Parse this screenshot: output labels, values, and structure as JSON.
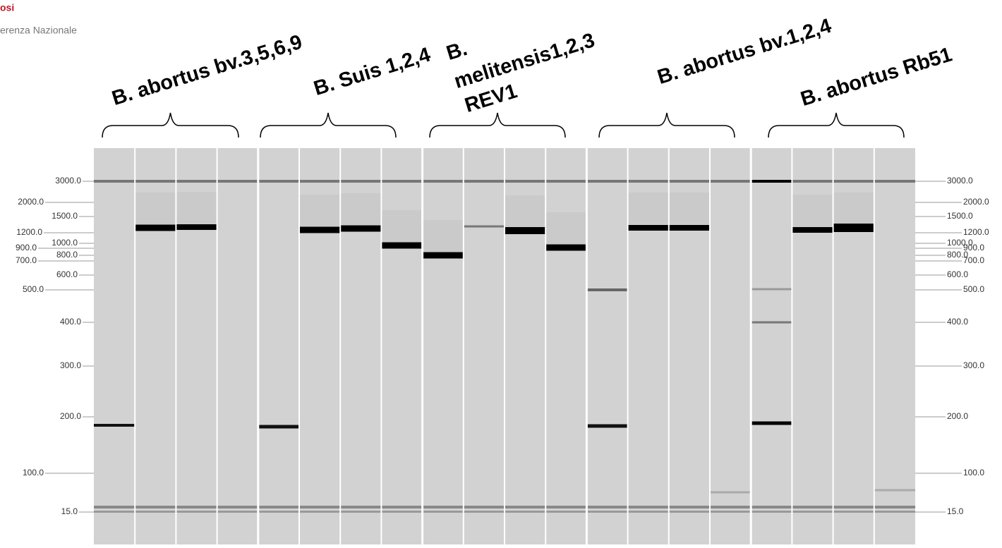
{
  "logo": {
    "line1": "osi",
    "line2": "erenza Nazionale"
  },
  "groups": [
    "B. abortus bv.3,5,6,9",
    "B. Suis 1,2,4",
    "B.",
    "melitensis1,2,3",
    "REV1",
    "B. abortus bv.1,2,4",
    "B. abortus Rb51"
  ],
  "ladder_left": [
    "3000.0",
    "2000.0",
    "1500.0",
    "1200.0",
    "1000.0",
    "900.0",
    "800.0",
    "700.0",
    "600.0",
    "500.0",
    "400.0",
    "300.0",
    "200.0",
    "100.0",
    "15.0"
  ],
  "ladder_right": [
    "3000.0",
    "2000.0",
    "1500.0",
    "1200.0",
    "1000.0",
    "900.0",
    "800.0",
    "700.0",
    "600.0",
    "500.0",
    "400.0",
    "300.0",
    "200.0",
    "100.0",
    "15.0"
  ]
}
